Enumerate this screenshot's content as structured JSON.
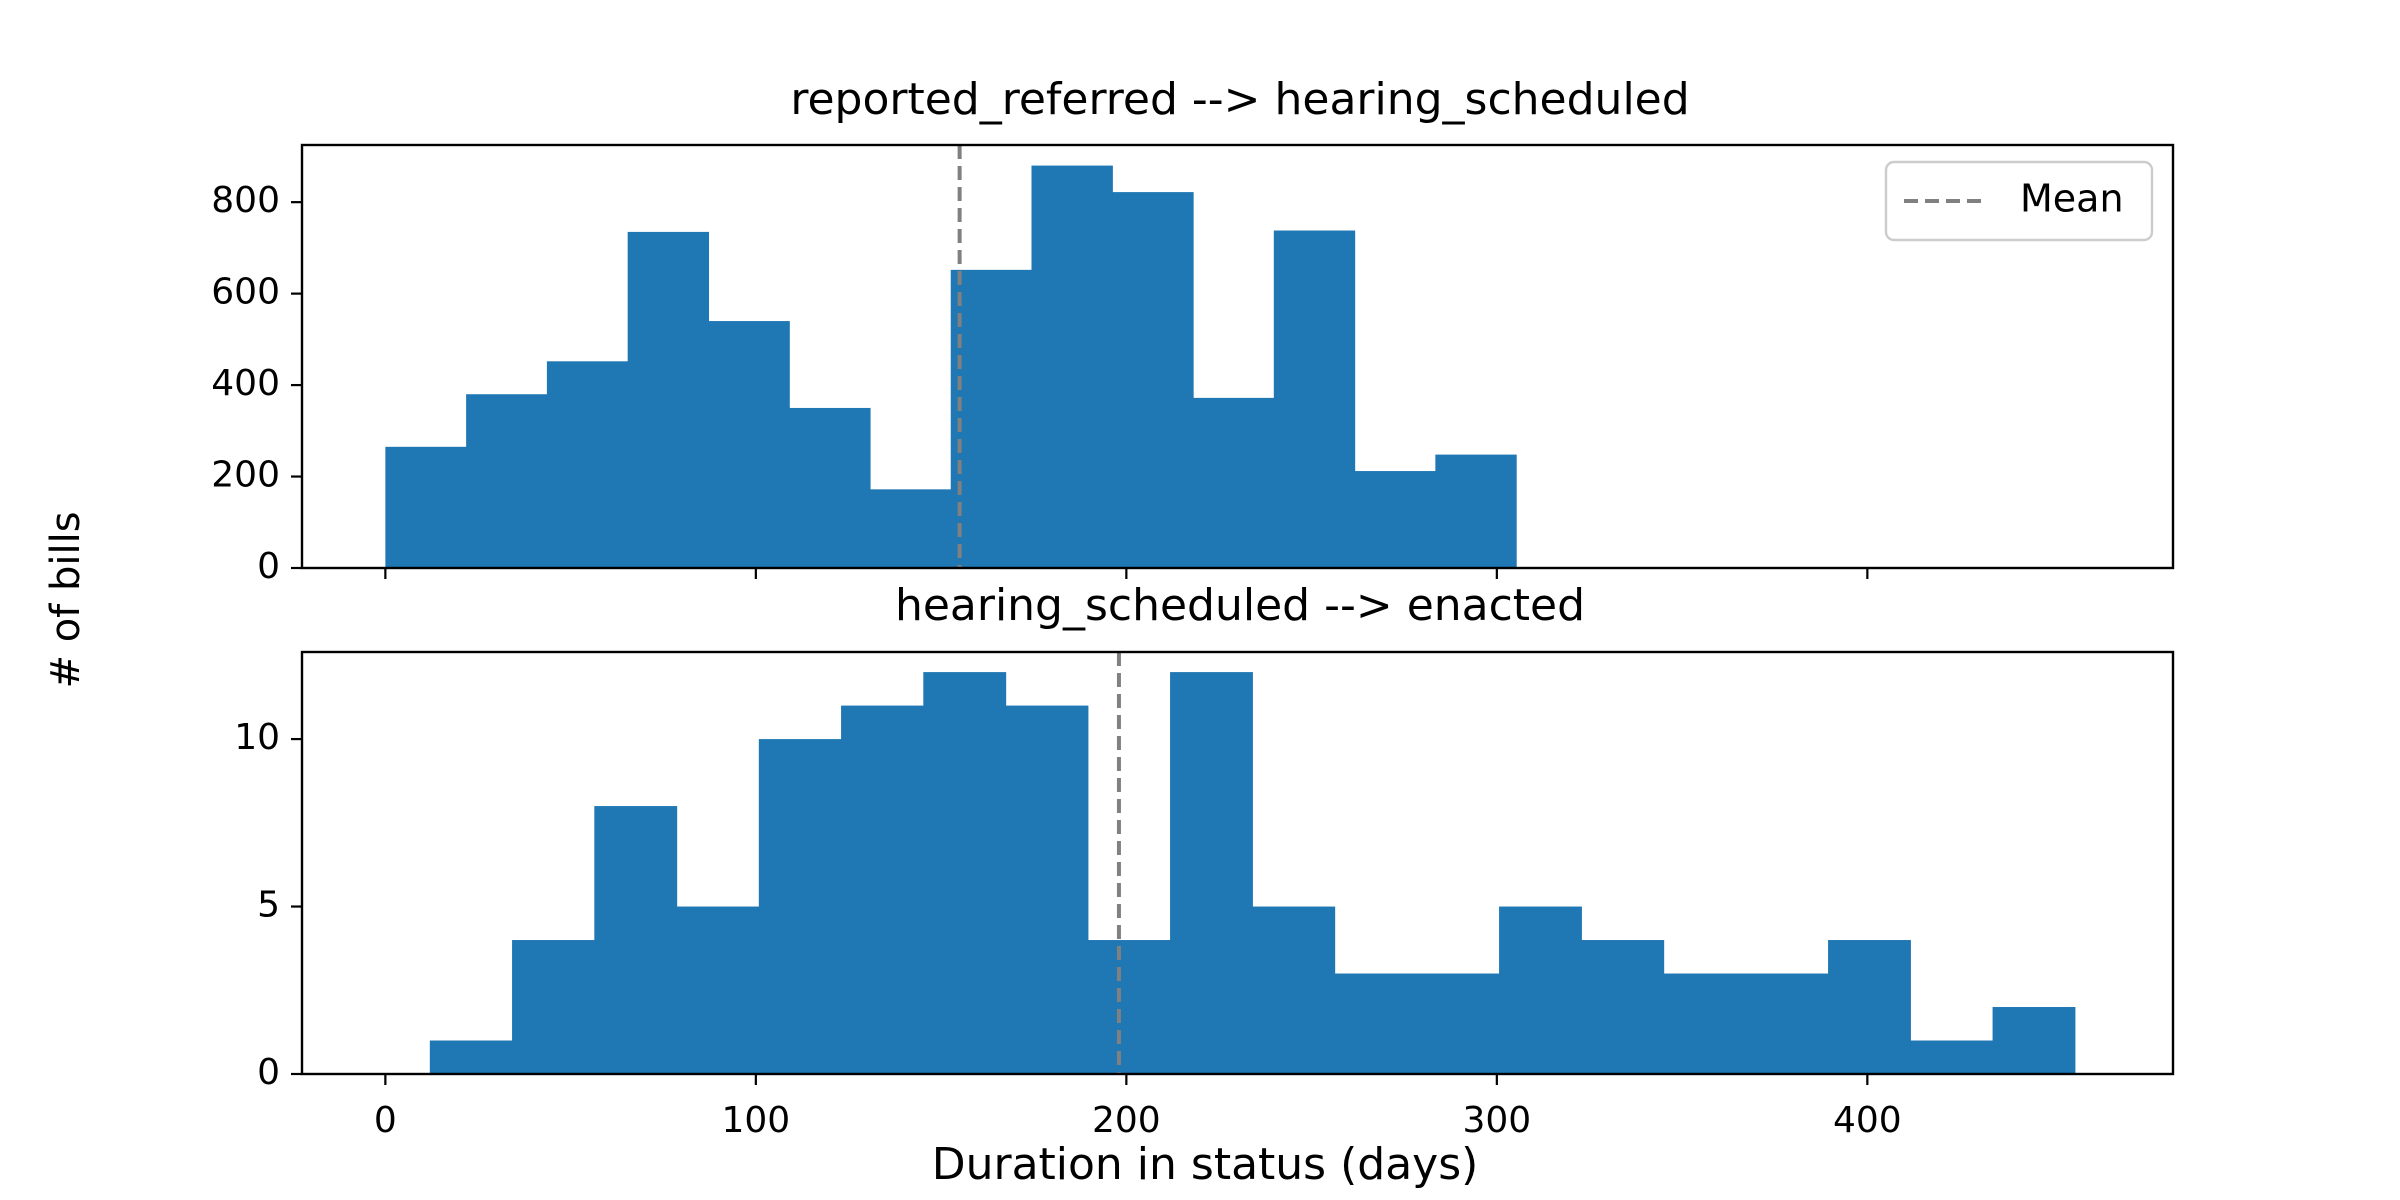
{
  "figure": {
    "ylabel": "# of bills",
    "xlabel": "Duration in status (days)"
  },
  "legend": {
    "label": "Mean",
    "placement": "upper right",
    "line_style": "dashed",
    "color": "#808080"
  },
  "colors": {
    "bar": "#1f77b4",
    "mean_line": "#808080"
  },
  "chart_data": [
    {
      "type": "histogram",
      "title": "reported_referred --> hearing_scheduled",
      "xlim": [
        -22.5,
        482.5
      ],
      "ylim": [
        0,
        925
      ],
      "x_ticks": [
        0,
        100,
        200,
        300,
        400
      ],
      "x_tick_labels_shown": false,
      "y_ticks": [
        0,
        200,
        400,
        600,
        800
      ],
      "y_tick_labels": [
        "0",
        "200",
        "400",
        "600",
        "800"
      ],
      "bin_start": 0,
      "bin_width": 21.8,
      "values": [
        265,
        380,
        452,
        735,
        540,
        350,
        172,
        652,
        880,
        822,
        372,
        738,
        212,
        248
      ],
      "mean": 155,
      "legend": true,
      "grid": false
    },
    {
      "type": "histogram",
      "title": "hearing_scheduled --> enacted",
      "xlim": [
        -22.5,
        482.5
      ],
      "ylim": [
        0,
        12.6
      ],
      "x_ticks": [
        0,
        100,
        200,
        300,
        400
      ],
      "x_tick_labels": [
        "0",
        "100",
        "200",
        "300",
        "400"
      ],
      "y_ticks": [
        0,
        5,
        10
      ],
      "y_tick_labels": [
        "0",
        "5",
        "10"
      ],
      "bin_start": 12,
      "bin_width": 22.2,
      "values": [
        1,
        4,
        8,
        5,
        10,
        11,
        12,
        11,
        4,
        12,
        5,
        3,
        3,
        5,
        4,
        3,
        3,
        4,
        1,
        2
      ],
      "mean": 198,
      "legend": false,
      "grid": false
    }
  ]
}
